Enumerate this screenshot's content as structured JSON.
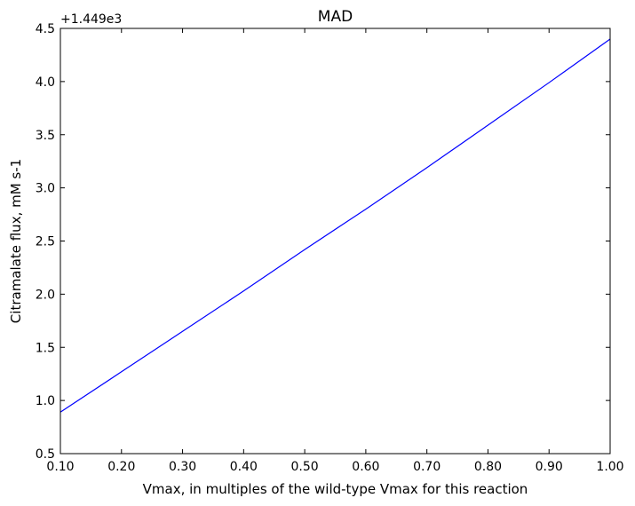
{
  "chart_data": {
    "type": "line",
    "title": "MAD",
    "xlabel": "Vmax, in multiples of the wild-type Vmax for this reaction",
    "ylabel": "Citramalate flux, mM s-1",
    "offset_label": "+1.449e3",
    "xlim": [
      0.1,
      1.0
    ],
    "ylim": [
      0.5,
      4.5
    ],
    "x_ticks": [
      "0.10",
      "0.20",
      "0.30",
      "0.40",
      "0.50",
      "0.60",
      "0.70",
      "0.80",
      "0.90",
      "1.00"
    ],
    "y_ticks": [
      "0.5",
      "1.0",
      "1.5",
      "2.0",
      "2.5",
      "3.0",
      "3.5",
      "4.0",
      "4.5"
    ],
    "grid": false,
    "series": [
      {
        "color": "#0000ff",
        "x": [
          0.1,
          0.2,
          0.3,
          0.4,
          0.5,
          0.6,
          0.7,
          0.8,
          0.9,
          1.0
        ],
        "y": [
          0.89,
          1.27,
          1.65,
          2.03,
          2.42,
          2.8,
          3.19,
          3.59,
          3.99,
          4.4
        ]
      }
    ]
  }
}
